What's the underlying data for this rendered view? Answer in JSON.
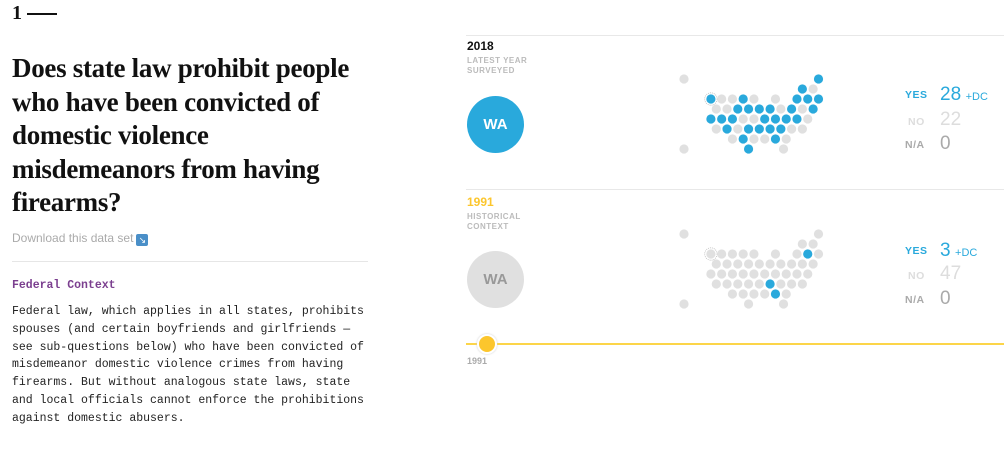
{
  "question": {
    "number": "1",
    "title": "Does state law prohibit people who have been convicted of domestic violence misdemeanors from having firearms?",
    "download": "Download this data set",
    "download_icon": "arrow-down-right-icon"
  },
  "federal": {
    "heading": "Federal Context",
    "text": "Federal law, which applies in all states, prohibits spouses (and certain boyfriends and girlfriends — see sub-questions below) who have been convicted of misdemeanor domestic violence crimes from having firearms. But without analogous state laws, state and local officials cannot enforce the prohibitions against domestic abusers."
  },
  "colors": {
    "yes": "#29a9dc",
    "no": "#e0e0e0",
    "latest": "#111111",
    "historical": "#fcc62d",
    "label_gray": "#bbbbbb"
  },
  "panels": [
    {
      "year": "2018",
      "subtitle": "LATEST YEAR SURVEYED",
      "state": "WA",
      "state_status": "yes",
      "yes_label": "YES",
      "yes": "28",
      "dc": "+DC",
      "no_label": "NO",
      "no": "22",
      "na_label": "N/A",
      "na": "0",
      "map": [
        "no",
        "yes",
        "yes",
        "no",
        "yes",
        "no",
        "no",
        "yes",
        "no",
        "no",
        "yes",
        "yes",
        "yes",
        "no",
        "no",
        "yes",
        "yes",
        "yes",
        "yes",
        "no",
        "yes",
        "no",
        "yes",
        "yes",
        "yes",
        "yes",
        "no",
        "no",
        "yes",
        "yes",
        "yes",
        "yes",
        "no",
        "no",
        "yes",
        "no",
        "yes",
        "yes",
        "yes",
        "yes",
        "no",
        "no",
        "no",
        "yes",
        "no",
        "no",
        "yes",
        "no",
        "no",
        "yes",
        "no",
        "yes",
        "no",
        "yes",
        "yes",
        "no"
      ]
    },
    {
      "year": "1991",
      "subtitle": "HISTORICAL CONTEXT",
      "state": "WA",
      "state_status": "no",
      "yes_label": "YES",
      "yes": "3",
      "dc": "+DC",
      "no_label": "NO",
      "no": "47",
      "na_label": "N/A",
      "na": "0",
      "map": [
        "no",
        "no",
        "no",
        "no",
        "no",
        "no",
        "no",
        "no",
        "no",
        "no",
        "no",
        "yes",
        "no",
        "no",
        "no",
        "no",
        "no",
        "no",
        "no",
        "no",
        "no",
        "no",
        "no",
        "no",
        "no",
        "no",
        "no",
        "no",
        "no",
        "no",
        "no",
        "no",
        "no",
        "no",
        "no",
        "no",
        "no",
        "no",
        "yes",
        "no",
        "no",
        "no",
        "no",
        "no",
        "no",
        "no",
        "yes",
        "no",
        "no",
        "no",
        "no",
        "no",
        "no",
        "yes",
        "no",
        "no"
      ]
    }
  ],
  "slider": {
    "value": "1991",
    "label": "1991"
  }
}
